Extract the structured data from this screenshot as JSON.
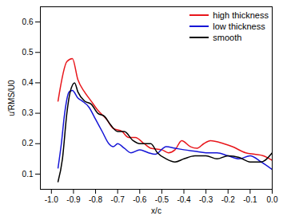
{
  "chart_data": {
    "type": "line",
    "x_label": "x/c",
    "y_label": "u′RMS/U0",
    "legend": "upper right",
    "xlim": [
      -1.05,
      0.0
    ],
    "xticks": [
      {
        "value": -1.0,
        "label": "-1.0"
      },
      {
        "value": -0.9,
        "label": "-0.9"
      },
      {
        "value": -0.8,
        "label": "-0.8"
      },
      {
        "value": -0.7,
        "label": "-0.7"
      },
      {
        "value": -0.6,
        "label": "-0.6"
      },
      {
        "value": -0.5,
        "label": "-0.5"
      },
      {
        "value": -0.4,
        "label": "-0.4"
      },
      {
        "value": -0.3,
        "label": "-0.3"
      },
      {
        "value": -0.2,
        "label": "-0.2"
      },
      {
        "value": -0.1,
        "label": "-0.1"
      },
      {
        "value": 0.0,
        "label": "0.0"
      }
    ],
    "ylim": [
      0.05,
      0.65
    ],
    "yticks": [
      0.1,
      0.2,
      0.3,
      0.4,
      0.5,
      0.6
    ],
    "series": [
      {
        "name": "high thickness",
        "color": "#e8161b",
        "x": [
          -0.97,
          -0.93,
          -0.905,
          -0.88,
          -0.85,
          -0.82,
          -0.79,
          -0.75,
          -0.72,
          -0.68,
          -0.65,
          -0.62,
          -0.58,
          -0.55,
          -0.5,
          -0.47,
          -0.44,
          -0.41,
          -0.37,
          -0.34,
          -0.31,
          -0.28,
          -0.22,
          -0.18,
          -0.12,
          -0.08,
          -0.04,
          0.0
        ],
        "values": [
          0.34,
          0.47,
          0.48,
          0.41,
          0.37,
          0.34,
          0.31,
          0.28,
          0.25,
          0.24,
          0.22,
          0.22,
          0.2,
          0.185,
          0.18,
          0.17,
          0.18,
          0.21,
          0.19,
          0.185,
          0.2,
          0.21,
          0.2,
          0.19,
          0.17,
          0.165,
          0.16,
          0.145
        ]
      },
      {
        "name": "low thickness",
        "color": "#1515d6",
        "x": [
          -0.97,
          -0.955,
          -0.94,
          -0.92,
          -0.905,
          -0.88,
          -0.86,
          -0.83,
          -0.8,
          -0.77,
          -0.74,
          -0.72,
          -0.7,
          -0.67,
          -0.64,
          -0.6,
          -0.56,
          -0.53,
          -0.48,
          -0.44,
          -0.4,
          -0.35,
          -0.3,
          -0.25,
          -0.2,
          -0.15,
          -0.1,
          -0.05,
          0.0
        ],
        "values": [
          0.12,
          0.2,
          0.3,
          0.37,
          0.375,
          0.35,
          0.34,
          0.32,
          0.28,
          0.24,
          0.2,
          0.19,
          0.2,
          0.185,
          0.17,
          0.18,
          0.17,
          0.165,
          0.19,
          0.185,
          0.18,
          0.175,
          0.17,
          0.17,
          0.16,
          0.15,
          0.16,
          0.14,
          0.115
        ]
      },
      {
        "name": "smooth",
        "color": "#000000",
        "x": [
          -0.97,
          -0.95,
          -0.93,
          -0.915,
          -0.895,
          -0.88,
          -0.85,
          -0.82,
          -0.79,
          -0.76,
          -0.73,
          -0.7,
          -0.67,
          -0.63,
          -0.6,
          -0.55,
          -0.52,
          -0.48,
          -0.44,
          -0.4,
          -0.35,
          -0.3,
          -0.25,
          -0.2,
          -0.15,
          -0.1,
          -0.05,
          0.0
        ],
        "values": [
          0.075,
          0.15,
          0.3,
          0.37,
          0.4,
          0.37,
          0.34,
          0.33,
          0.3,
          0.29,
          0.26,
          0.24,
          0.24,
          0.21,
          0.2,
          0.2,
          0.17,
          0.15,
          0.14,
          0.15,
          0.16,
          0.16,
          0.15,
          0.16,
          0.155,
          0.14,
          0.14,
          0.17
        ]
      }
    ]
  }
}
